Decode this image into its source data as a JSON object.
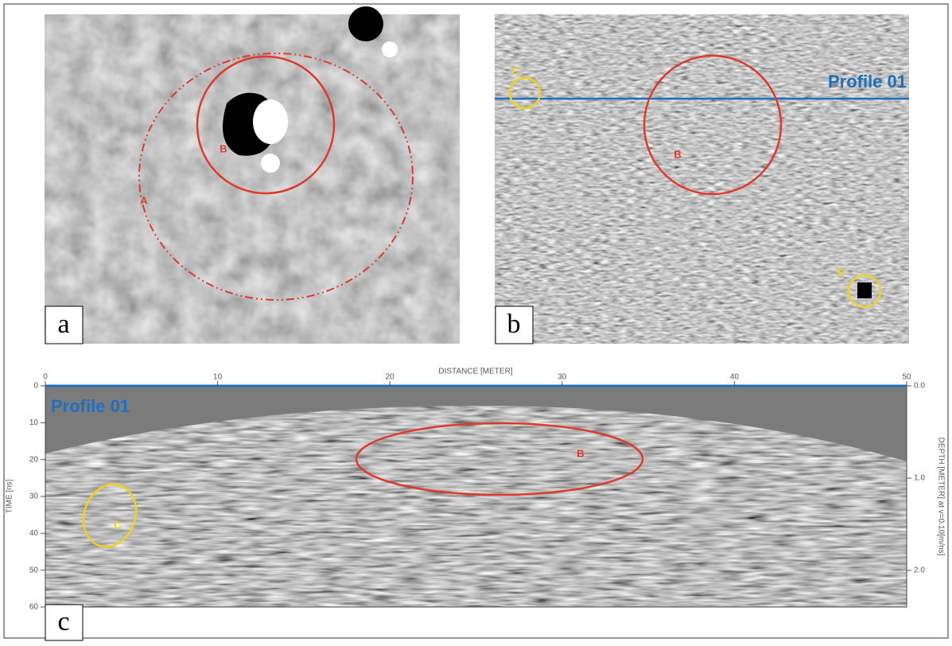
{
  "panels": [
    {
      "label": "a",
      "annotations": [
        "A",
        "B"
      ]
    },
    {
      "label": "b",
      "annotations": [
        "B",
        "C",
        "D"
      ],
      "profile": "Profile 01"
    },
    {
      "label": "c",
      "annotations": [
        "B",
        "C"
      ],
      "profile": "Profile 01",
      "x_axis": {
        "title": "DISTANCE [METER]",
        "ticks": [
          0,
          10,
          20,
          30,
          40,
          50
        ]
      },
      "y_axis": {
        "title": "TIME [ns]",
        "ticks": [
          0,
          10,
          20,
          30,
          40,
          50,
          60
        ]
      },
      "y2_axis": {
        "title": "DEPTH [METER] at v=0.10[m/ns]",
        "ticks": [
          {
            "value": 0,
            "label": "0.0"
          },
          {
            "value": 1,
            "label": "1.0"
          },
          {
            "value": 2,
            "label": "2.0"
          }
        ]
      }
    }
  ]
}
